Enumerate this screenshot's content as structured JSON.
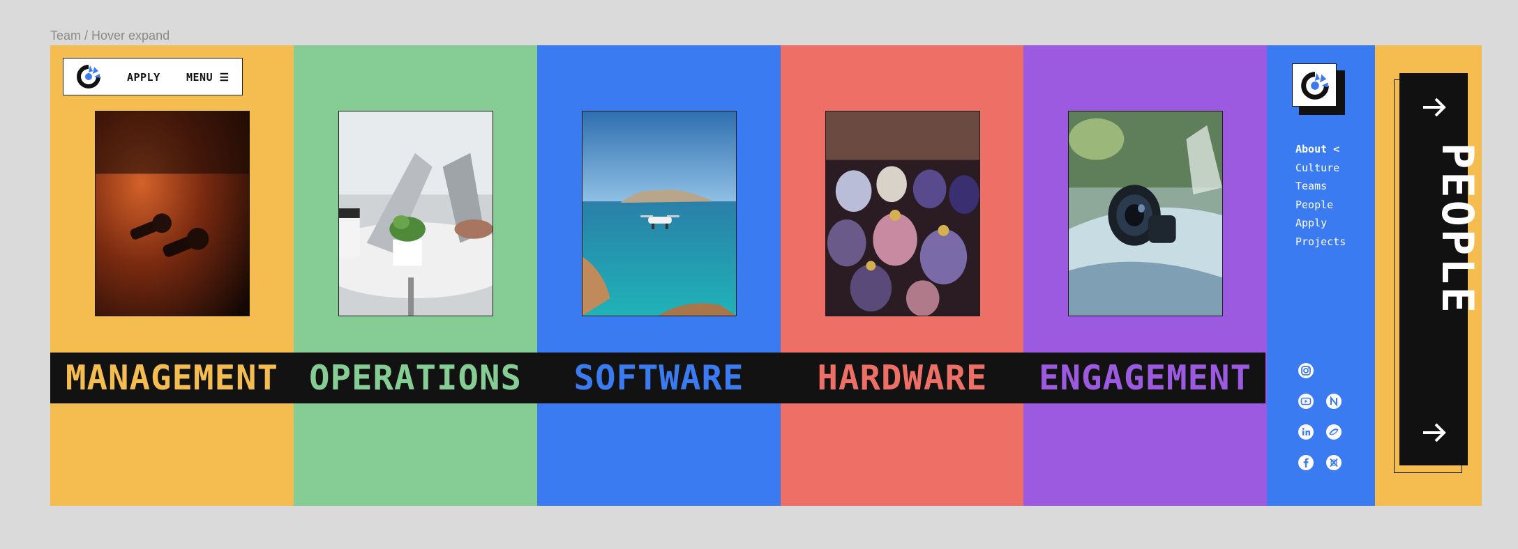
{
  "frame_label": "Team / Hover expand",
  "colors": {
    "management": "#f5bd50",
    "operations": "#86cc95",
    "software": "#3b7bf2",
    "hardware": "#ee6f66",
    "engagement": "#9b5ae0",
    "band": "#121212"
  },
  "nav": {
    "apply_label": "APPLY",
    "menu_label": "MENU ☰",
    "logo_icon": "brand-logo-icon"
  },
  "teams": [
    {
      "name": "MANAGEMENT",
      "photo": "earbuds"
    },
    {
      "name": "OPERATIONS",
      "photo": "laptop-and-plant"
    },
    {
      "name": "SOFTWARE",
      "photo": "drone-over-sea"
    },
    {
      "name": "HARDWARE",
      "photo": "ornament-eggs"
    },
    {
      "name": "ENGAGEMENT",
      "photo": "camera-lens"
    }
  ],
  "sidebar": {
    "menu": [
      {
        "label": "About <",
        "active": true
      },
      {
        "label": "Culture",
        "active": false
      },
      {
        "label": "Teams",
        "active": false
      },
      {
        "label": "People",
        "active": false
      },
      {
        "label": "Apply",
        "active": false
      },
      {
        "label": "Projects",
        "active": false
      }
    ],
    "socials": [
      "instagram-icon",
      "youtube-icon",
      "notion-icon",
      "linkedin-icon",
      "link-icon",
      "facebook-icon",
      "x-icon"
    ]
  },
  "people_card": {
    "label": "PEOPLE",
    "top_arrow": "arrow-right-icon",
    "bottom_arrow": "arrow-right-icon"
  }
}
